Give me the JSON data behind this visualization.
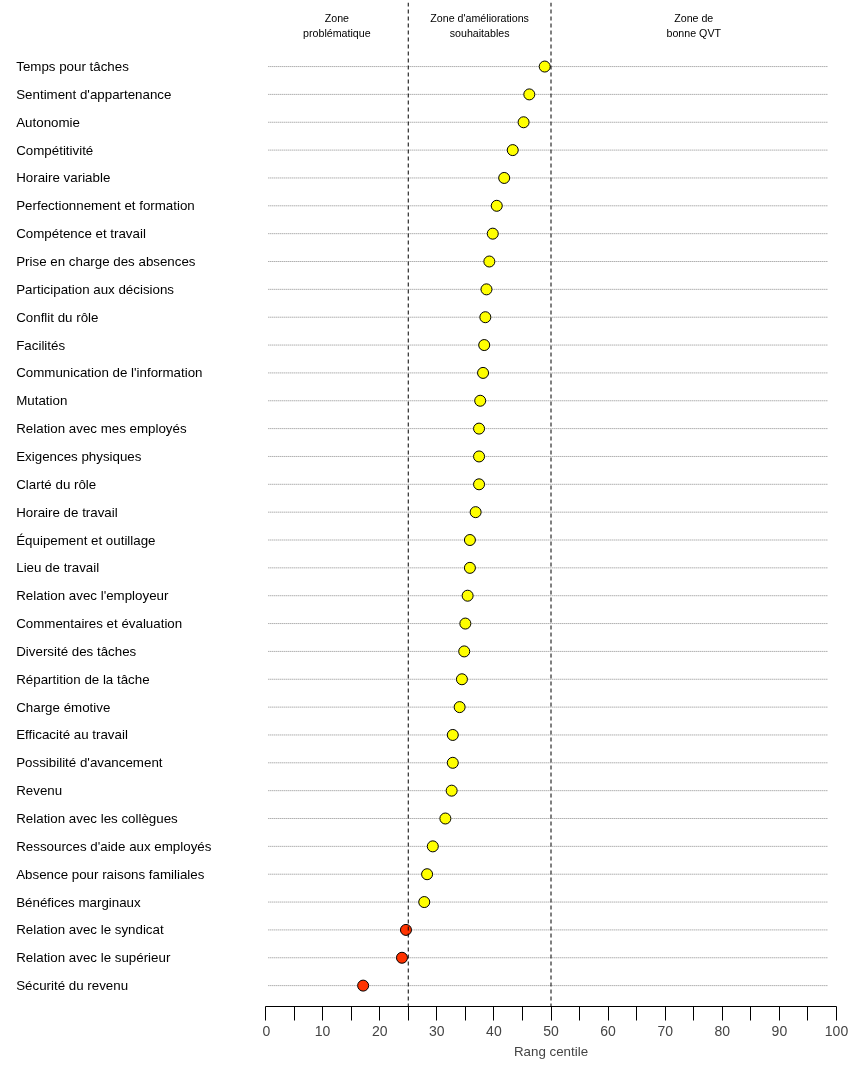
{
  "chart_data": {
    "type": "scatter",
    "xlabel": "Rang centile",
    "categories": [
      "Temps pour tâches",
      "Sentiment d'appartenance",
      "Autonomie",
      "Compétitivité",
      "Horaire variable",
      "Perfectionnement et formation",
      "Compétence et travail",
      "Prise en charge des absences",
      "Participation aux décisions",
      "Conflit du rôle",
      "Facilités",
      "Communication de l'information",
      "Mutation",
      "Relation avec mes employés",
      "Exigences physiques",
      "Clarté du rôle",
      "Horaire de travail",
      "Équipement et outillage",
      "Lieu de travail",
      "Relation avec l'employeur",
      "Commentaires et évaluation",
      "Diversité des tâches",
      "Répartition de la tâche",
      "Charge émotive",
      "Efficacité au travail",
      "Possibilité d'avancement",
      "Revenu",
      "Relation avec les collègues",
      "Ressources d'aide aux employés",
      "Absence pour raisons familiales",
      "Bénéfices marginaux",
      "Relation avec le syndicat",
      "Relation avec le supérieur",
      "Sécurité du revenu"
    ],
    "values": [
      48.9,
      46.2,
      45.2,
      43.3,
      41.8,
      40.5,
      39.8,
      39.2,
      38.7,
      38.5,
      38.3,
      38.1,
      37.6,
      37.4,
      37.4,
      37.4,
      36.8,
      35.8,
      35.8,
      35.4,
      35.0,
      34.8,
      34.4,
      34.0,
      32.8,
      32.8,
      32.6,
      31.5,
      29.3,
      28.3,
      27.8,
      24.6,
      23.9,
      17.1
    ],
    "colors": [
      "#ffff00",
      "#ffff00",
      "#ffff00",
      "#ffff00",
      "#ffff00",
      "#ffff00",
      "#ffff00",
      "#ffff00",
      "#ffff00",
      "#ffff00",
      "#ffff00",
      "#ffff00",
      "#ffff00",
      "#ffff00",
      "#ffff00",
      "#ffff00",
      "#ffff00",
      "#ffff00",
      "#ffff00",
      "#ffff00",
      "#ffff00",
      "#ffff00",
      "#ffff00",
      "#ffff00",
      "#ffff00",
      "#ffff00",
      "#ffff00",
      "#ffff00",
      "#ffff00",
      "#ffff00",
      "#ffff00",
      "#ff3300",
      "#ff3300",
      "#ff3300"
    ],
    "orientation": "horizontal",
    "xlim": [
      0,
      100
    ],
    "xticks": [
      0,
      {
        "value": 5,
        "label": null
      },
      10,
      {
        "value": 15,
        "label": null
      },
      20,
      {
        "value": 25,
        "label": null
      },
      30,
      {
        "value": 35,
        "label": null
      },
      40,
      {
        "value": 45,
        "label": null
      },
      50,
      {
        "value": 55,
        "label": null
      },
      60,
      {
        "value": 65,
        "label": null
      },
      70,
      {
        "value": 75,
        "label": null
      },
      80,
      {
        "value": 85,
        "label": null
      },
      90,
      {
        "value": 95,
        "label": null
      },
      100
    ],
    "ref_lines": [
      {
        "axis": "x",
        "value": 25,
        "line_style": "dashed",
        "color": "#000000"
      },
      {
        "axis": "x",
        "value": 50,
        "line_style": "dashed",
        "color": "#000000"
      }
    ],
    "annotations": [
      "Zone\nproblématique",
      "Zone d'améliorations\nsouhaitables",
      "Zone de\nbonne QVT"
    ],
    "grid": "y",
    "marker": "circle"
  }
}
